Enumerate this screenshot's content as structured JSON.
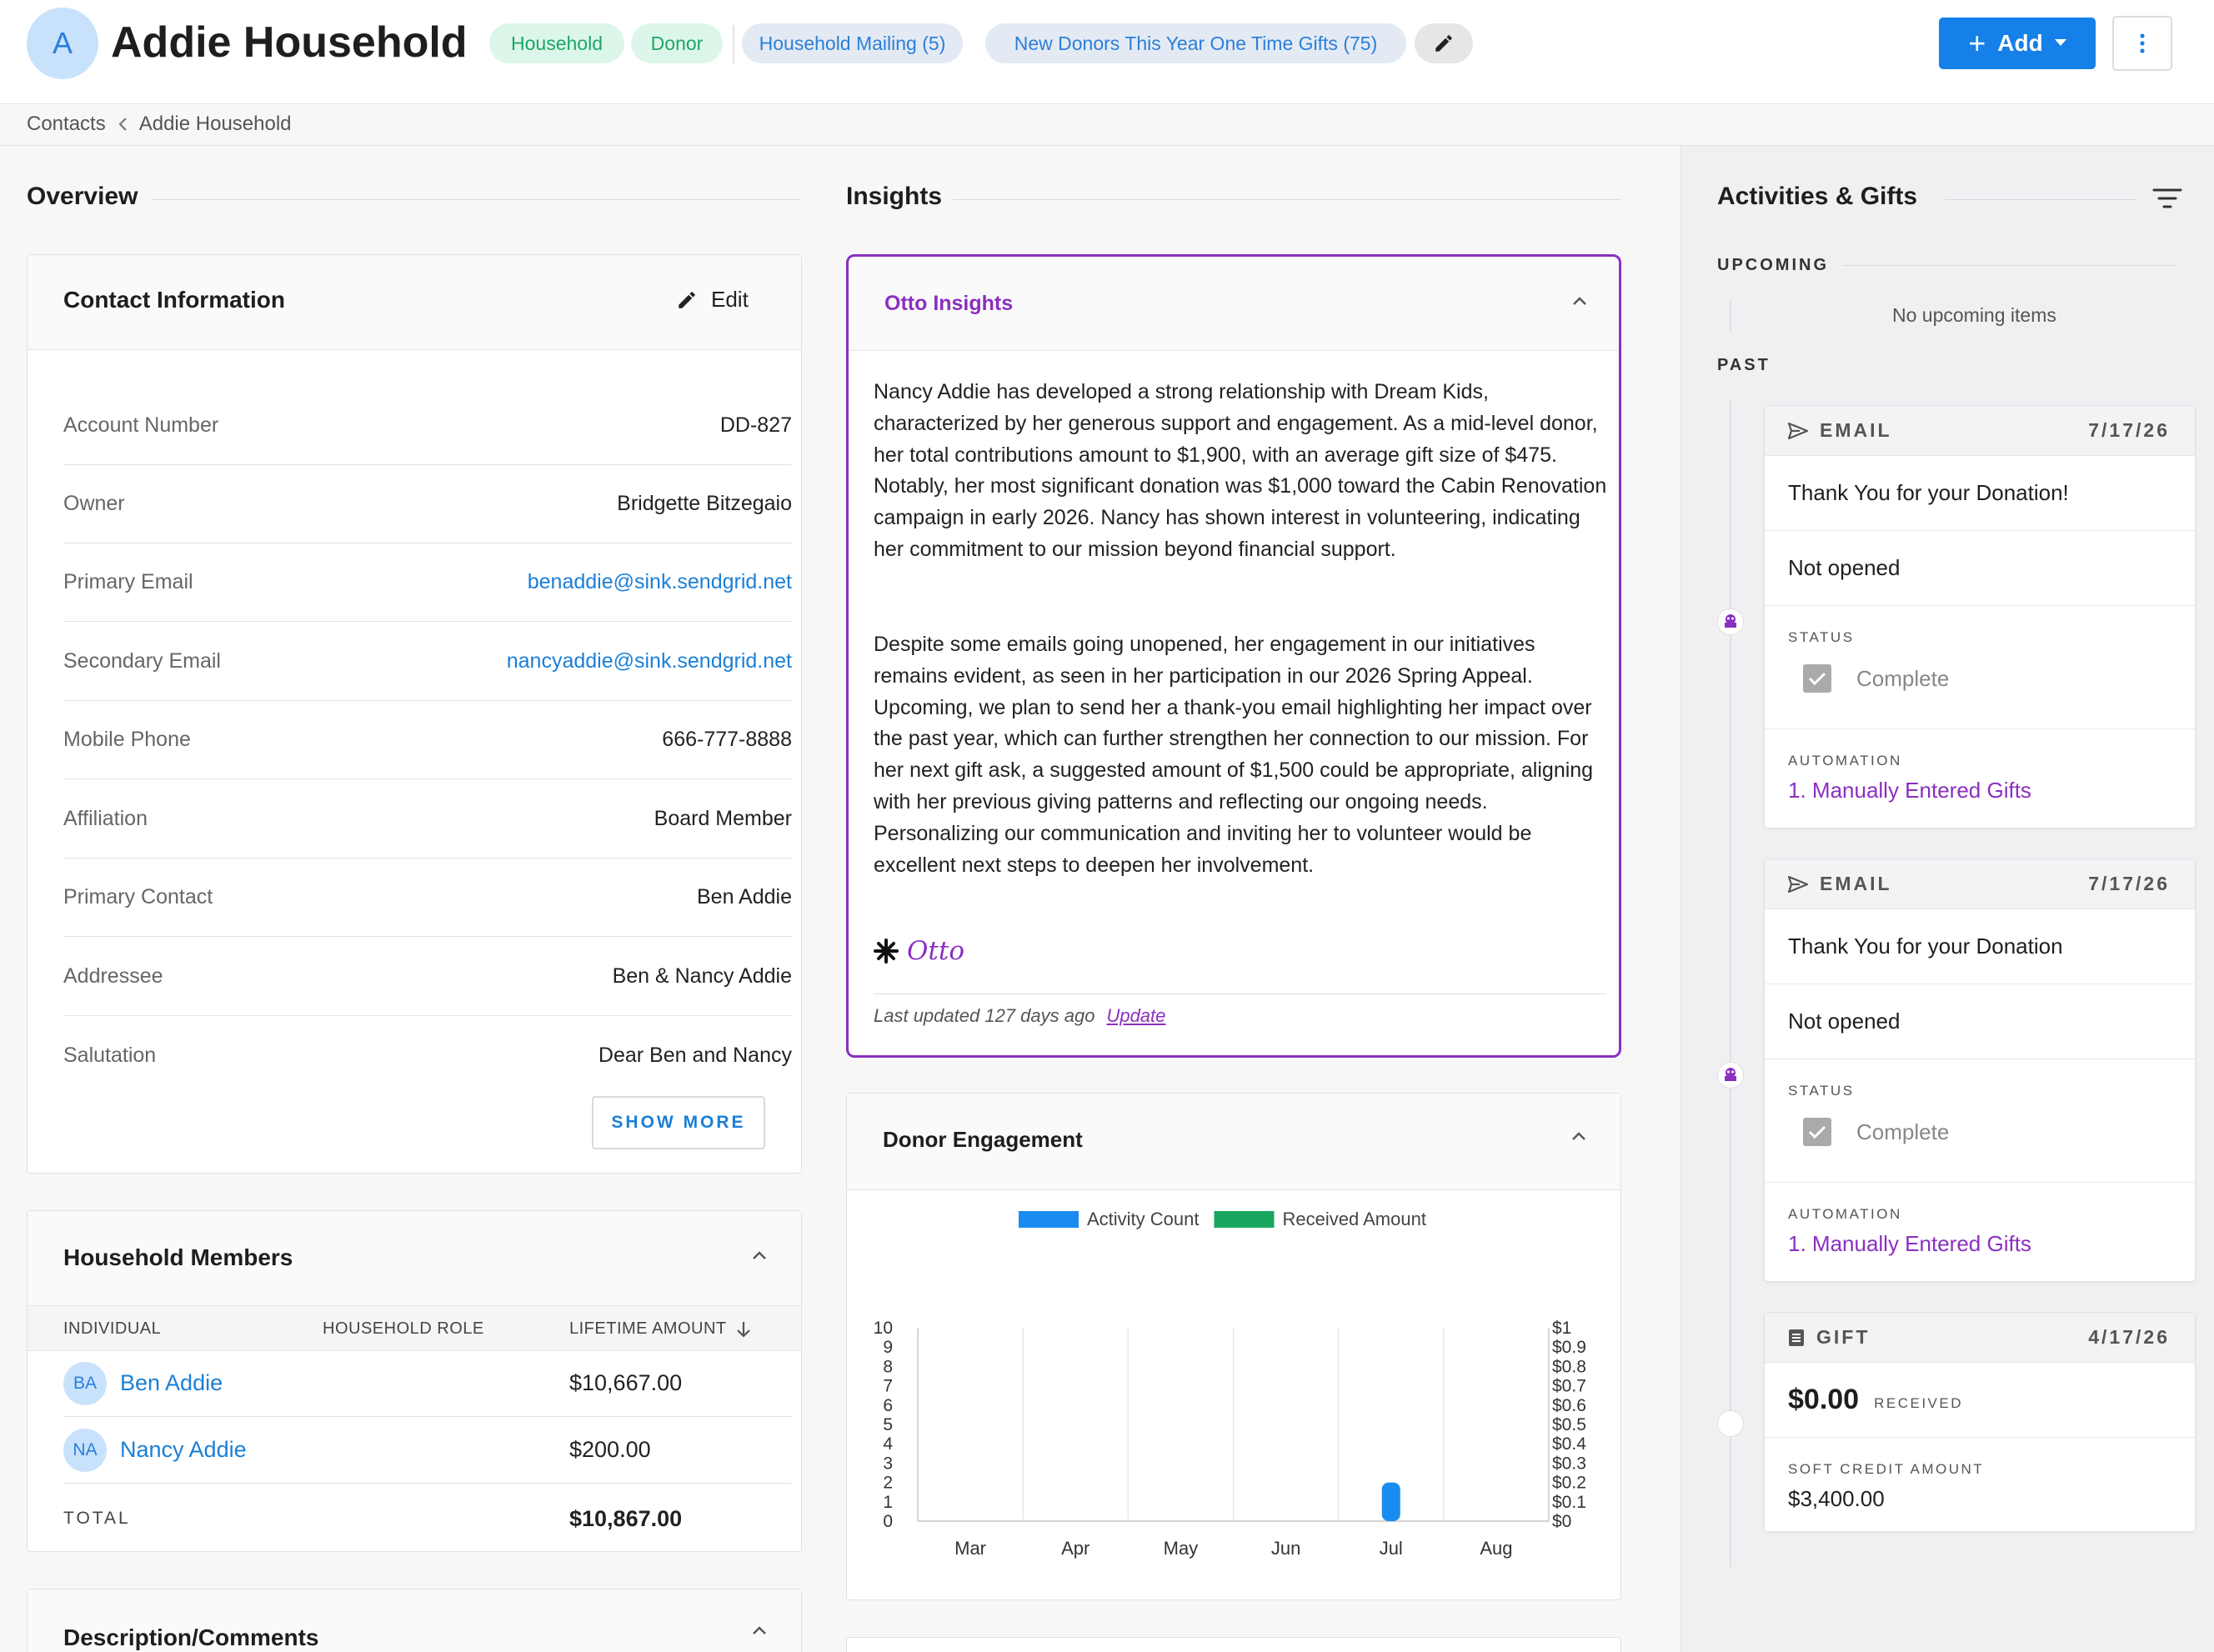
{
  "header": {
    "avatar_initial": "A",
    "title": "Addie Household",
    "tags": [
      "Household",
      "Donor"
    ],
    "lists": [
      "Household Mailing (5)",
      "New Donors This Year One Time Gifts (75)"
    ],
    "add_label": "Add"
  },
  "breadcrumb": {
    "root": "Contacts",
    "current": "Addie Household"
  },
  "overview": {
    "heading": "Overview",
    "contact_card": {
      "title": "Contact Information",
      "edit_label": "Edit",
      "fields": [
        {
          "label": "Account Number",
          "value": "DD-827"
        },
        {
          "label": "Owner",
          "value": "Bridgette Bitzegaio"
        },
        {
          "label": "Primary Email",
          "value": "benaddie@sink.sendgrid.net"
        },
        {
          "label": "Secondary Email",
          "value": "nancyaddie@sink.sendgrid.net"
        },
        {
          "label": "Mobile Phone",
          "value": "666-777-8888"
        },
        {
          "label": "Affiliation",
          "value": "Board Member"
        },
        {
          "label": "Primary Contact",
          "value": "Ben Addie"
        },
        {
          "label": "Addressee",
          "value": "Ben & Nancy Addie"
        },
        {
          "label": "Salutation",
          "value": "Dear Ben and Nancy"
        }
      ],
      "show_more": "SHOW MORE"
    },
    "household": {
      "title": "Household Members",
      "columns": [
        "INDIVIDUAL",
        "HOUSEHOLD ROLE",
        "LIFETIME AMOUNT"
      ],
      "members": [
        {
          "initials": "BA",
          "name": "Ben Addie",
          "role": "",
          "amount": "$10,667.00"
        },
        {
          "initials": "NA",
          "name": "Nancy Addie",
          "role": "",
          "amount": "$200.00"
        }
      ],
      "total_label": "TOTAL",
      "total_value": "$10,867.00"
    },
    "description_title": "Description/Comments"
  },
  "insights": {
    "heading": "Insights",
    "otto": {
      "title": "Otto Insights",
      "p1": "Nancy Addie has developed a strong relationship with Dream Kids, characterized by her generous support and engagement. As a mid-level donor, her total contributions amount to $1,900, with an average gift size of $475. Notably, her most significant donation was $1,000 toward the Cabin Renovation campaign in early 2026. Nancy has shown interest in volunteering, indicating her commitment to our mission beyond financial support.",
      "p2": "Despite some emails going unopened, her engagement in our initiatives remains evident, as seen in her participation in our 2026 Spring Appeal. Upcoming, we plan to send her a thank-you email highlighting her impact over the past year, which can further strengthen her connection to our mission. For her next gift ask, a suggested amount of $1,500 could be appropriate, aligning with her previous giving patterns and reflecting our ongoing needs. Personalizing our communication and inviting her to volunteer would be excellent next steps to deepen her involvement.",
      "signature": "Otto",
      "last_updated": "Last updated 127 days ago",
      "update_link": "Update"
    },
    "engagement_title": "Donor Engagement"
  },
  "chart_data": {
    "type": "bar",
    "categories": [
      "Mar",
      "Apr",
      "May",
      "Jun",
      "Jul",
      "Aug"
    ],
    "series": [
      {
        "name": "Activity Count",
        "color": "#1a8cf0",
        "values": [
          0,
          0,
          0,
          0,
          2,
          0
        ]
      },
      {
        "name": "Received Amount",
        "color": "#1aa65f",
        "values": [
          0,
          0,
          0,
          0,
          0,
          0
        ]
      }
    ],
    "y_left": {
      "min": 0,
      "max": 10,
      "ticks": [
        "0",
        "1",
        "2",
        "3",
        "4",
        "5",
        "6",
        "7",
        "8",
        "9",
        "10"
      ]
    },
    "y_right": {
      "min": 0,
      "max": 1,
      "ticks": [
        "$0",
        "$0.1",
        "$0.2",
        "$0.3",
        "$0.4",
        "$0.5",
        "$0.6",
        "$0.7",
        "$0.8",
        "$0.9",
        "$1"
      ]
    },
    "legend": "top"
  },
  "activities": {
    "heading": "Activities & Gifts",
    "upcoming_label": "UPCOMING",
    "no_upcoming": "No upcoming items",
    "past_label": "PAST",
    "items": [
      {
        "type": "EMAIL",
        "date": "7/17/26",
        "subject": "Thank You for your Donation!",
        "opened": "Not opened",
        "status_label": "STATUS",
        "status": "Complete",
        "automation_label": "AUTOMATION",
        "automation": "1. Manually Entered Gifts"
      },
      {
        "type": "EMAIL",
        "date": "7/17/26",
        "subject": "Thank You for your Donation",
        "opened": "Not opened",
        "status_label": "STATUS",
        "status": "Complete",
        "automation_label": "AUTOMATION",
        "automation": "1. Manually Entered Gifts"
      }
    ],
    "gift": {
      "type": "GIFT",
      "date": "4/17/26",
      "amount": "$0.00",
      "status": "RECEIVED",
      "soft_label": "SOFT CREDIT AMOUNT",
      "soft_value": "$3,400.00"
    }
  }
}
